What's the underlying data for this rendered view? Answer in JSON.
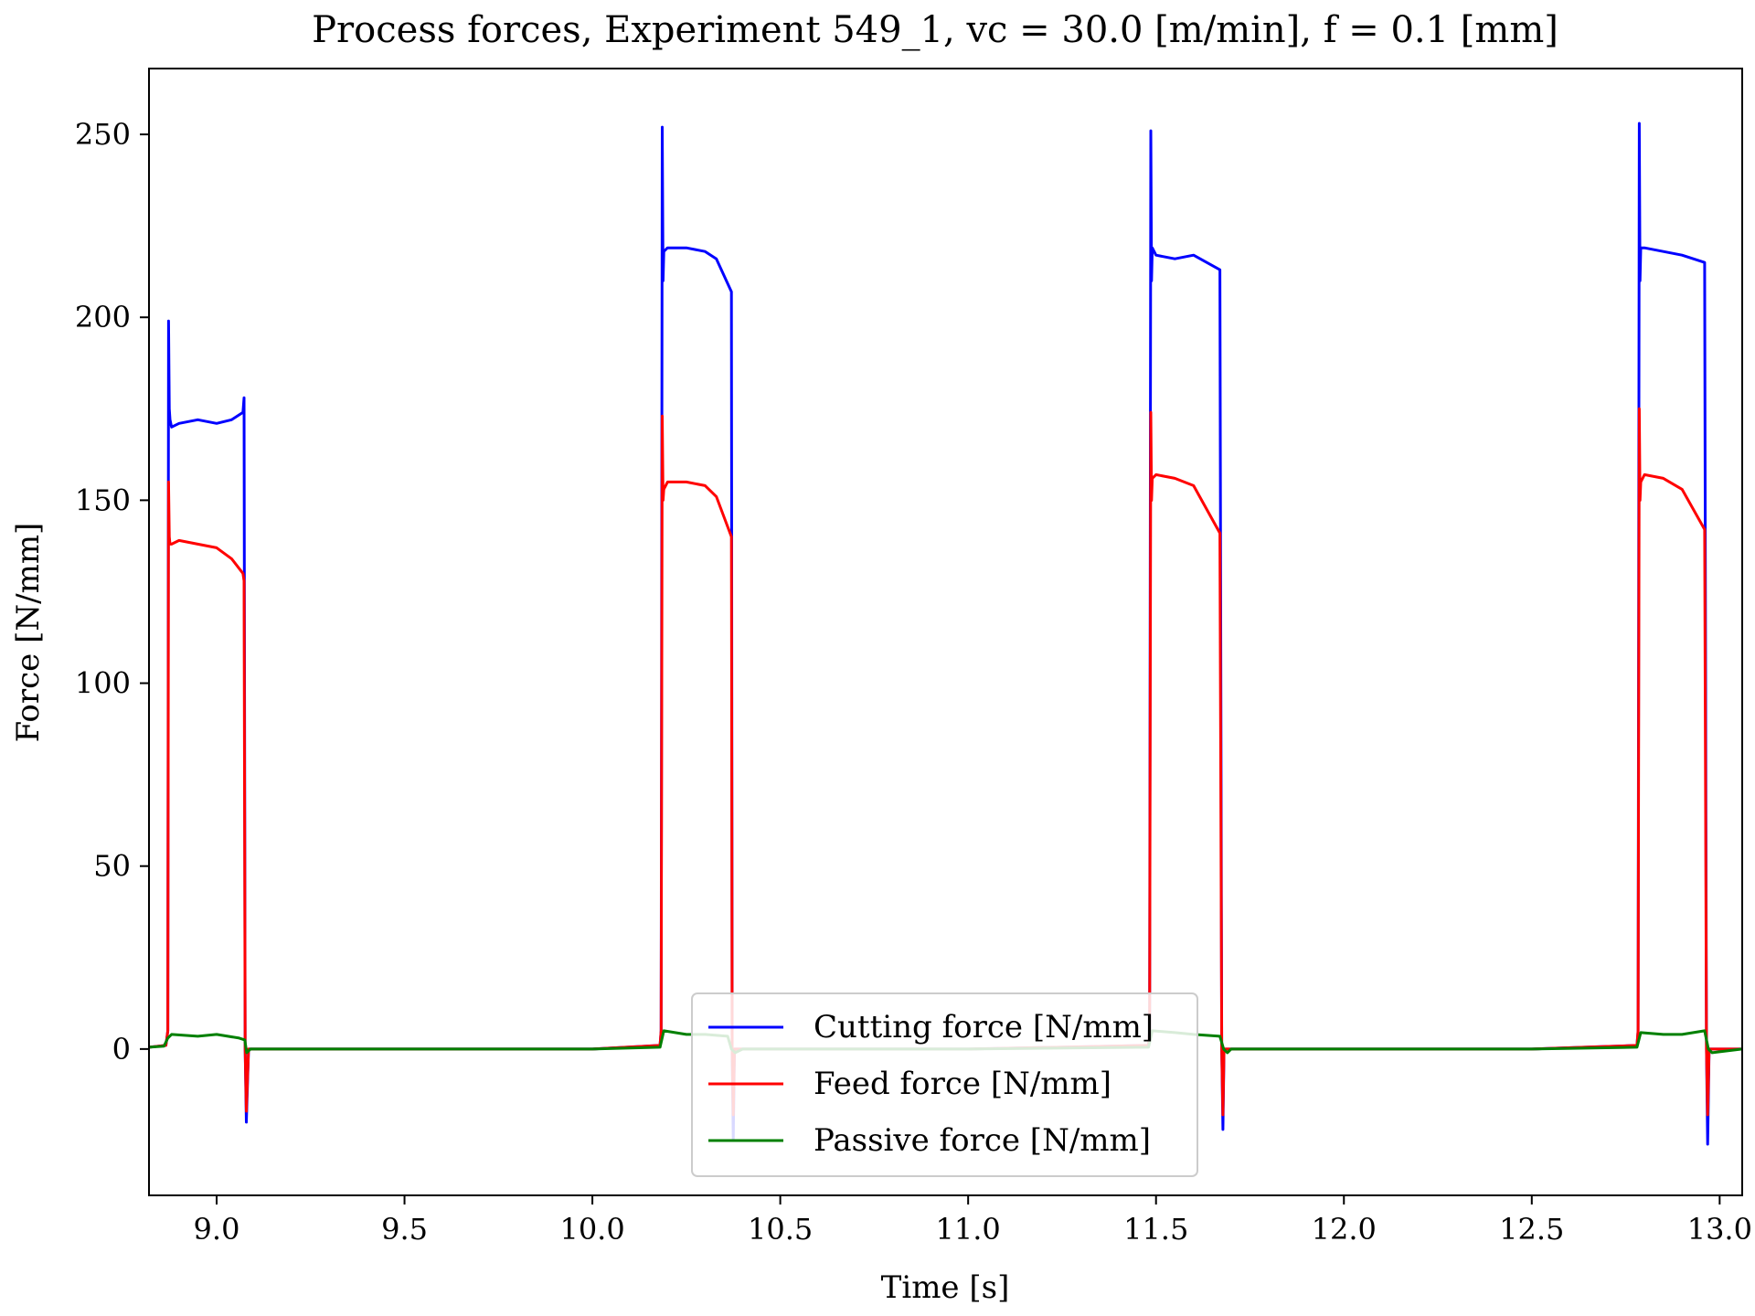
{
  "chart_data": {
    "type": "line",
    "title": "Process forces, Experiment 549_1, vc = 30.0 [m/min], f = 0.1 [mm]",
    "xlabel": "Time [s]",
    "ylabel": "Force [N/mm]",
    "xlim": [
      8.82,
      13.06
    ],
    "ylim": [
      -40,
      268
    ],
    "xticks": [
      9.0,
      9.5,
      10.0,
      10.5,
      11.0,
      11.5,
      12.0,
      12.5,
      13.0
    ],
    "xtick_labels": [
      "9.0",
      "9.5",
      "10.0",
      "10.5",
      "11.0",
      "11.5",
      "12.0",
      "12.5",
      "13.0"
    ],
    "yticks": [
      0,
      50,
      100,
      150,
      200,
      250
    ],
    "ytick_labels": [
      "0",
      "50",
      "100",
      "150",
      "200",
      "250"
    ],
    "grid": false,
    "legend_position": "bottom-center",
    "series": [
      {
        "name": "Cutting force [N/mm]",
        "color": "#0000ff",
        "x": [
          8.82,
          8.865,
          8.87,
          8.872,
          8.874,
          8.876,
          8.88,
          8.9,
          8.95,
          9.0,
          9.04,
          9.07,
          9.073,
          9.076,
          9.079,
          9.085,
          9.1,
          9.5,
          10.0,
          10.18,
          10.183,
          10.186,
          10.188,
          10.19,
          10.2,
          10.25,
          10.3,
          10.33,
          10.37,
          10.372,
          10.375,
          10.378,
          10.385,
          10.4,
          11.0,
          11.48,
          11.483,
          11.486,
          11.488,
          11.49,
          11.5,
          11.55,
          11.6,
          11.67,
          11.675,
          11.678,
          11.681,
          11.69,
          11.7,
          12.0,
          12.5,
          12.78,
          12.783,
          12.786,
          12.788,
          12.79,
          12.8,
          12.85,
          12.9,
          12.96,
          12.965,
          12.968,
          12.972,
          12.98,
          13.06
        ],
        "y": [
          0.5,
          1,
          5,
          199,
          175,
          172,
          170,
          171,
          172,
          171,
          172,
          174,
          178,
          0,
          -20,
          0,
          0,
          0,
          0,
          1,
          5,
          252,
          210,
          218,
          219,
          219,
          218,
          216,
          207,
          0,
          -25,
          0,
          0,
          0,
          0,
          1,
          5,
          251,
          210,
          219,
          217,
          216,
          217,
          213,
          0,
          -22,
          0,
          0,
          0,
          0,
          0,
          1,
          5,
          253,
          210,
          219,
          219,
          218,
          217,
          215,
          0,
          -26,
          0,
          0,
          0
        ]
      },
      {
        "name": "Feed force [N/mm]",
        "color": "#ff0000",
        "x": [
          8.82,
          8.865,
          8.87,
          8.872,
          8.874,
          8.876,
          8.88,
          8.9,
          8.95,
          9.0,
          9.04,
          9.07,
          9.073,
          9.076,
          9.079,
          9.085,
          9.1,
          9.5,
          10.0,
          10.18,
          10.183,
          10.186,
          10.188,
          10.19,
          10.2,
          10.25,
          10.3,
          10.33,
          10.37,
          10.372,
          10.375,
          10.378,
          10.385,
          10.4,
          11.0,
          11.48,
          11.483,
          11.486,
          11.488,
          11.49,
          11.5,
          11.55,
          11.6,
          11.67,
          11.675,
          11.678,
          11.681,
          11.69,
          11.7,
          12.0,
          12.5,
          12.78,
          12.783,
          12.786,
          12.788,
          12.79,
          12.8,
          12.85,
          12.9,
          12.96,
          12.965,
          12.968,
          12.972,
          12.98,
          13.06
        ],
        "y": [
          0.5,
          1,
          5,
          155,
          140,
          138,
          138,
          139,
          138,
          137,
          134,
          130,
          128,
          0,
          -17,
          0,
          0,
          0,
          0,
          1,
          5,
          173,
          150,
          153,
          155,
          155,
          154,
          151,
          140,
          0,
          -18,
          0,
          0,
          0,
          0,
          1,
          5,
          174,
          150,
          156,
          157,
          156,
          154,
          141,
          0,
          -18,
          0,
          0,
          0,
          0,
          0,
          1,
          5,
          175,
          150,
          155,
          157,
          156,
          153,
          142,
          0,
          -18,
          0,
          0,
          0
        ]
      },
      {
        "name": "Passive force [N/mm]",
        "color": "#008000",
        "x": [
          8.82,
          8.86,
          8.87,
          8.88,
          8.95,
          9.0,
          9.06,
          9.075,
          9.08,
          9.09,
          9.5,
          10.0,
          10.18,
          10.19,
          10.25,
          10.3,
          10.36,
          10.37,
          10.38,
          10.4,
          11.0,
          11.48,
          11.49,
          11.55,
          11.6,
          11.67,
          11.68,
          11.69,
          11.7,
          12.0,
          12.5,
          12.78,
          12.79,
          12.85,
          12.9,
          12.96,
          12.97,
          12.98,
          13.06
        ],
        "y": [
          0.5,
          0.8,
          3,
          4,
          3.5,
          4,
          3,
          2.5,
          -1,
          0,
          0,
          0,
          0.5,
          5,
          4,
          4,
          3.5,
          0,
          -1,
          0,
          0,
          0.5,
          5,
          4.5,
          4,
          3.5,
          0,
          -1,
          0,
          0,
          0,
          0.5,
          4.5,
          4,
          4,
          5,
          0,
          -1,
          0
        ]
      }
    ]
  }
}
